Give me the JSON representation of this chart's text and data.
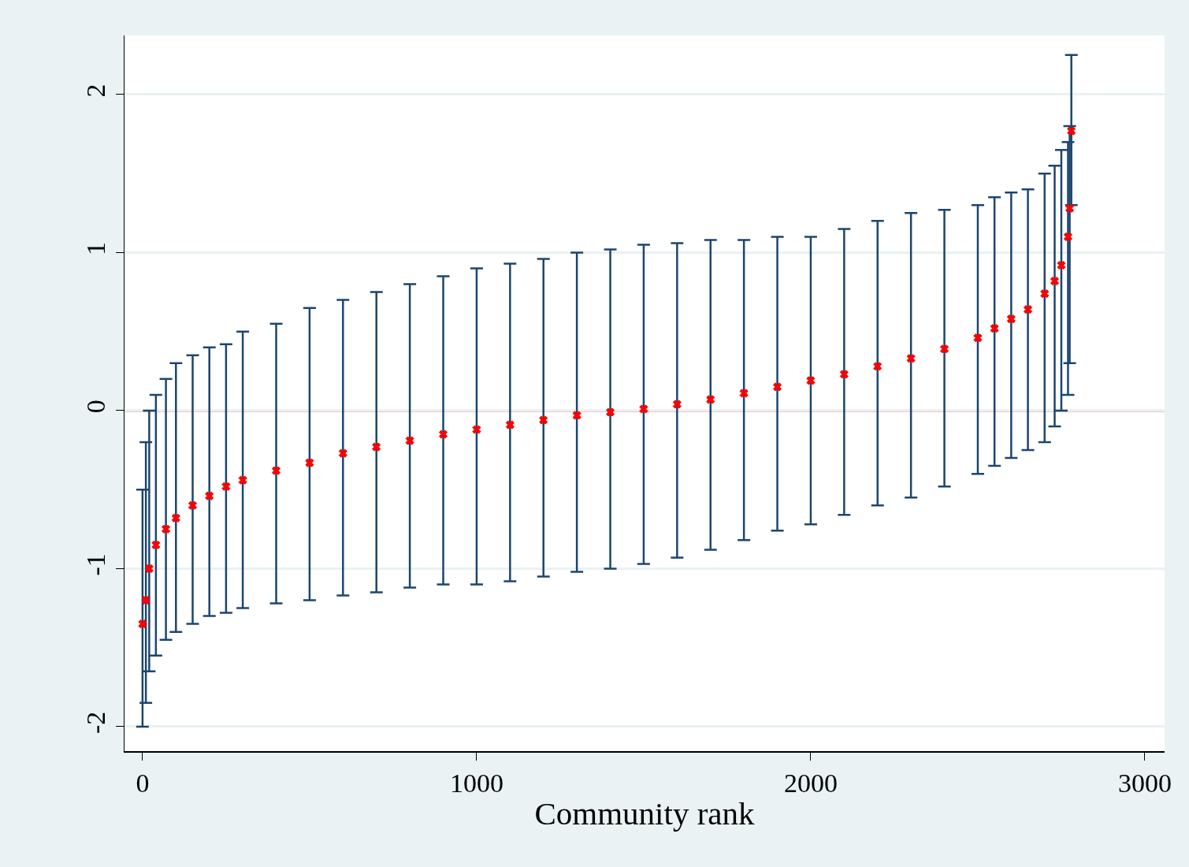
{
  "chart_data": {
    "type": "scatter",
    "xlabel": "Community rank",
    "x": [
      0,
      10,
      20,
      40,
      70,
      100,
      150,
      200,
      250,
      300,
      400,
      500,
      600,
      700,
      800,
      900,
      1000,
      1100,
      1200,
      1300,
      1400,
      1500,
      1600,
      1700,
      1800,
      1900,
      2000,
      2100,
      2200,
      2300,
      2400,
      2500,
      2550,
      2600,
      2650,
      2700,
      2730,
      2750,
      2770,
      2775,
      2780
    ],
    "series": [
      {
        "color": "#ff0000",
        "values": [
          -1.35,
          -1.2,
          -1.0,
          -0.85,
          -0.75,
          -0.68,
          -0.6,
          -0.54,
          -0.48,
          -0.44,
          -0.38,
          -0.33,
          -0.27,
          -0.23,
          -0.19,
          -0.15,
          -0.12,
          -0.09,
          -0.06,
          -0.03,
          -0.01,
          0.01,
          0.04,
          0.07,
          0.11,
          0.15,
          0.19,
          0.23,
          0.28,
          0.33,
          0.39,
          0.46,
          0.52,
          0.58,
          0.64,
          0.74,
          0.82,
          0.92,
          1.1,
          1.28,
          1.77
        ],
        "errors": [
          [
            -2.0,
            -0.5
          ],
          [
            -1.85,
            -0.2
          ],
          [
            -1.65,
            0.0
          ],
          [
            -1.55,
            0.1
          ],
          [
            -1.45,
            0.2
          ],
          [
            -1.4,
            0.3
          ],
          [
            -1.35,
            0.35
          ],
          [
            -1.3,
            0.4
          ],
          [
            -1.28,
            0.42
          ],
          [
            -1.25,
            0.5
          ],
          [
            -1.22,
            0.55
          ],
          [
            -1.2,
            0.65
          ],
          [
            -1.17,
            0.7
          ],
          [
            -1.15,
            0.75
          ],
          [
            -1.12,
            0.8
          ],
          [
            -1.1,
            0.85
          ],
          [
            -1.1,
            0.9
          ],
          [
            -1.08,
            0.93
          ],
          [
            -1.05,
            0.96
          ],
          [
            -1.02,
            1.0
          ],
          [
            -1.0,
            1.02
          ],
          [
            -0.97,
            1.05
          ],
          [
            -0.93,
            1.06
          ],
          [
            -0.88,
            1.08
          ],
          [
            -0.82,
            1.08
          ],
          [
            -0.76,
            1.1
          ],
          [
            -0.72,
            1.1
          ],
          [
            -0.66,
            1.15
          ],
          [
            -0.6,
            1.2
          ],
          [
            -0.55,
            1.25
          ],
          [
            -0.48,
            1.27
          ],
          [
            -0.4,
            1.3
          ],
          [
            -0.35,
            1.35
          ],
          [
            -0.3,
            1.38
          ],
          [
            -0.25,
            1.4
          ],
          [
            -0.2,
            1.5
          ],
          [
            -0.1,
            1.55
          ],
          [
            0.0,
            1.65
          ],
          [
            0.1,
            1.7
          ],
          [
            0.3,
            1.8
          ],
          [
            1.3,
            2.25
          ]
        ]
      }
    ],
    "marker": "cross",
    "xlim": [
      -54,
      3059
    ],
    "xticks": [
      0,
      1000,
      2000,
      3000
    ],
    "ylim": [
      -2.155,
      2.374
    ],
    "yticks": [
      -2,
      -1,
      0,
      1,
      2
    ],
    "ref_lines": [
      {
        "axis": "y",
        "value": 0,
        "color": "#c8102e"
      }
    ],
    "grid": "y"
  }
}
